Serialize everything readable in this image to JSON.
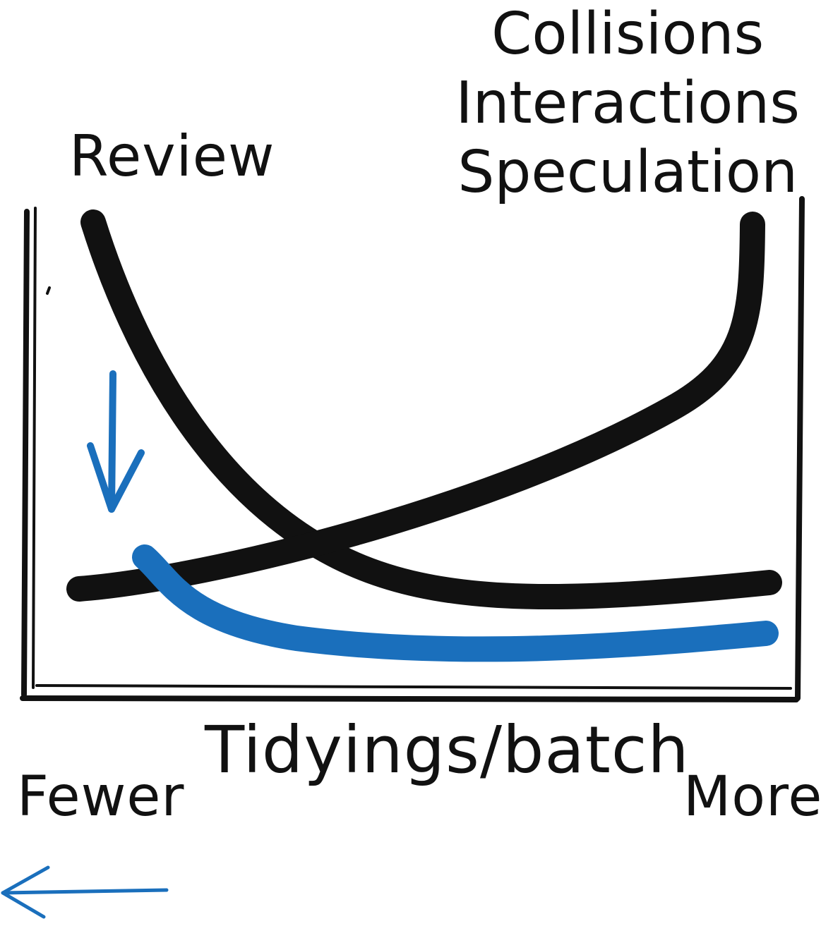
{
  "diagram": {
    "left_curve_label": "Review",
    "right_curve_labels": [
      "Collisions",
      "Interactions",
      "Speculation"
    ],
    "x_axis_label": "Tidyings/batch",
    "x_axis_low_label": "Fewer",
    "x_axis_high_label": "More"
  },
  "colors": {
    "ink": "#111111",
    "accent": "#1a6fbc",
    "background": "#ffffff"
  },
  "icons": {
    "down_arrow": "arrow-down-icon",
    "left_arrow": "arrow-left-icon"
  }
}
